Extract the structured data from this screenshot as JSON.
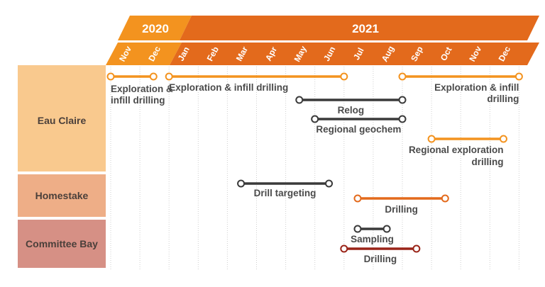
{
  "timeline": {
    "years": [
      {
        "label": "2020",
        "color": "#f3931f"
      },
      {
        "label": "2021",
        "color": "#e36a1c"
      }
    ],
    "months": [
      {
        "label": "Nov",
        "year": 2020
      },
      {
        "label": "Dec",
        "year": 2020
      },
      {
        "label": "Jan",
        "year": 2021
      },
      {
        "label": "Feb",
        "year": 2021
      },
      {
        "label": "Mar",
        "year": 2021
      },
      {
        "label": "Apr",
        "year": 2021
      },
      {
        "label": "May",
        "year": 2021
      },
      {
        "label": "Jun",
        "year": 2021
      },
      {
        "label": "Jul",
        "year": 2021
      },
      {
        "label": "Aug",
        "year": 2021
      },
      {
        "label": "Sep",
        "year": 2021
      },
      {
        "label": "Oct",
        "year": 2021
      },
      {
        "label": "Nov",
        "year": 2021
      },
      {
        "label": "Dec",
        "year": 2021
      }
    ]
  },
  "categories": [
    {
      "name": "Eau Claire",
      "color": "#f9c98e"
    },
    {
      "name": "Homestake",
      "color": "#eeae87"
    },
    {
      "name": "Committee Bay",
      "color": "#d69085"
    }
  ],
  "chart_data": {
    "type": "gantt",
    "tasks": [
      {
        "category": "Eau Claire",
        "label": [
          "Exploration &",
          "infill drilling"
        ],
        "start": "2020-11-01",
        "end": "2020-12-15",
        "color": "#f3931f",
        "label_align": "start"
      },
      {
        "category": "Eau Claire",
        "label": [
          "Exploration & infill drilling"
        ],
        "start": "2021-01-01",
        "end": "2021-06-30",
        "color": "#f3931f",
        "label_align": "start"
      },
      {
        "category": "Eau Claire",
        "label": [
          "Exploration & infill",
          "drilling"
        ],
        "start": "2021-09-01",
        "end": "2021-12-31",
        "color": "#f3931f",
        "label_align": "end"
      },
      {
        "category": "Eau Claire",
        "label": [
          "Relog"
        ],
        "start": "2021-05-15",
        "end": "2021-09-01",
        "color": "#3a3a3a",
        "label_align": "center"
      },
      {
        "category": "Eau Claire",
        "label": [
          "Regional geochem"
        ],
        "start": "2021-06-01",
        "end": "2021-09-01",
        "color": "#3a3a3a",
        "label_align": "center"
      },
      {
        "category": "Eau Claire",
        "label": [
          "Regional exploration",
          "drilling"
        ],
        "start": "2021-10-01",
        "end": "2021-12-15",
        "color": "#f3931f",
        "label_align": "end"
      },
      {
        "category": "Homestake",
        "label": [
          "Drill targeting"
        ],
        "start": "2021-03-15",
        "end": "2021-06-15",
        "color": "#3a3a3a",
        "label_align": "center"
      },
      {
        "category": "Homestake",
        "label": [
          "Drilling"
        ],
        "start": "2021-07-15",
        "end": "2021-10-15",
        "color": "#e36a1c",
        "label_align": "center"
      },
      {
        "category": "Committee Bay",
        "label": [
          "Sampling"
        ],
        "start": "2021-07-15",
        "end": "2021-08-15",
        "color": "#3a3a3a",
        "label_align": "center"
      },
      {
        "category": "Committee Bay",
        "label": [
          "Drilling"
        ],
        "start": "2021-07-01",
        "end": "2021-09-15",
        "color": "#9a2418",
        "label_align": "center"
      }
    ]
  }
}
